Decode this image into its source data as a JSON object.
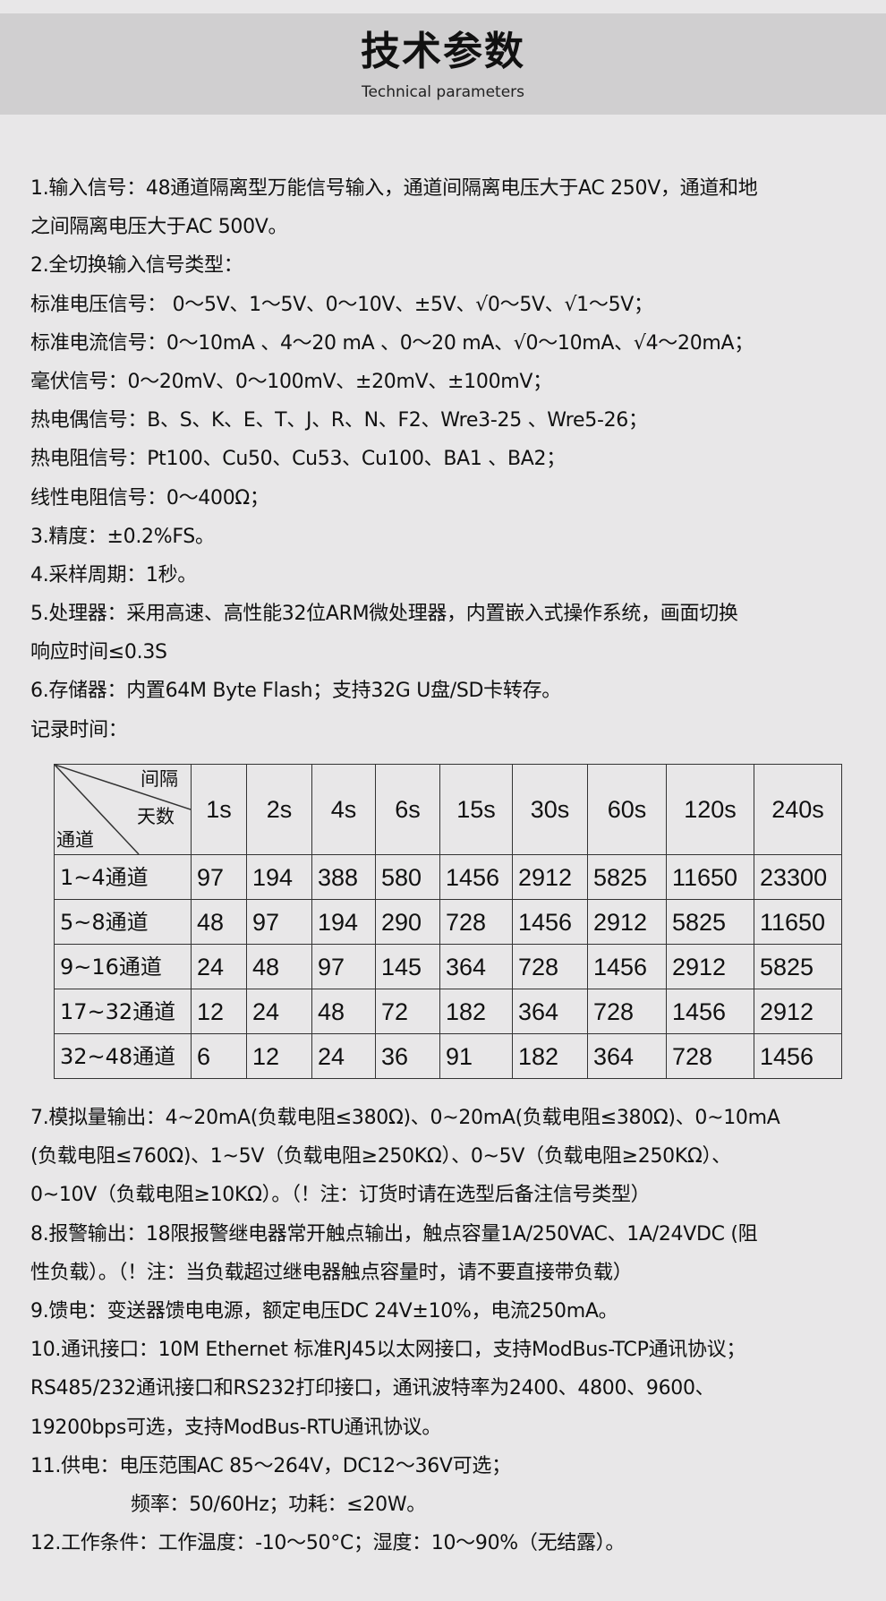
{
  "header": {
    "title": "技术参数",
    "subtitle": "Technical parameters"
  },
  "lines_top": [
    "1.输入信号：48通道隔离型万能信号输入，通道间隔离电压大于AC 250V，通道和地",
    "之间隔离电压大于AC 500V。",
    "2.全切换输入信号类型：",
    "标准电压信号： 0～5V、1～5V、0～10V、±5V、√0～5V、√1～5V；",
    "标准电流信号：0～10mA 、4～20 mA 、0～20 mA、√0～10mA、√4～20mA；",
    "毫伏信号：0～20mV、0～100mV、±20mV、±100mV；",
    "热电偶信号：B、S、K、E、T、J、R、N、F2、Wre3-25 、Wre5-26；",
    "热电阻信号：Pt100、Cu50、Cu53、Cu100、BA1 、BA2；",
    "线性电阻信号：0～400Ω；",
    "3.精度：±0.2%FS。",
    "4.采样周期：1秒。",
    "5.处理器：采用高速、高性能32位ARM微处理器，内置嵌入式操作系统，画面切换",
    "响应时间≤0.3S",
    "6.存储器：内置64M Byte Flash；支持32G U盘/SD卡转存。",
    "记录时间："
  ],
  "table": {
    "corner": {
      "top": "间隔",
      "middle": "天数",
      "bottom": "通道"
    },
    "columns": [
      "1s",
      "2s",
      "4s",
      "6s",
      "15s",
      "30s",
      "60s",
      "120s",
      "240s"
    ],
    "rows": [
      {
        "label": "1~4通道",
        "values": [
          "97",
          "194",
          "388",
          "580",
          "1456",
          "2912",
          "5825",
          "11650",
          "23300"
        ]
      },
      {
        "label": "5~8通道",
        "values": [
          "48",
          "97",
          "194",
          "290",
          "728",
          "1456",
          "2912",
          "5825",
          "11650"
        ]
      },
      {
        "label": "9~16通道",
        "values": [
          "24",
          "48",
          "97",
          "145",
          "364",
          "728",
          "1456",
          "2912",
          "5825"
        ]
      },
      {
        "label": "17~32通道",
        "values": [
          "12",
          "24",
          "48",
          "72",
          "182",
          "364",
          "728",
          "1456",
          "2912"
        ]
      },
      {
        "label": "32~48通道",
        "values": [
          "6",
          "12",
          "24",
          "36",
          "91",
          "182",
          "364",
          "728",
          "1456"
        ]
      }
    ]
  },
  "lines_bottom": [
    "7.模拟量输出：4~20mA(负载电阻≤380Ω)、0~20mA(负载电阻≤380Ω)、0~10mA",
    "(负载电阻≤760Ω)、1~5V（负载电阻≥250KΩ）、0~5V（负载电阻≥250KΩ）、",
    "0~10V（负载电阻≥10KΩ）。（！注：订货时请在选型后备注信号类型）",
    "8.报警输出：18限报警继电器常开触点输出，触点容量1A/250VAC、1A/24VDC (阻",
    "性负载）。（！注：当负载超过继电器触点容量时，请不要直接带负载）",
    "9.馈电：变送器馈电电源，额定电压DC 24V±10%，电流250mA。",
    "10.通讯接口：10M  Ethernet 标准RJ45以太网接口，支持ModBus-TCP通讯协议；",
    "RS485/232通讯接口和RS232打印接口，通讯波特率为2400、4800、9600、",
    "19200bps可选，支持ModBus-RTU通讯协议。",
    "11.供电：电压范围AC 85～264V，DC12～36V可选；",
    "频率：50/60Hz；功耗：≤20W。",
    "12.工作条件：工作温度：-10～50°C；湿度：10～90%（无结露）。"
  ]
}
